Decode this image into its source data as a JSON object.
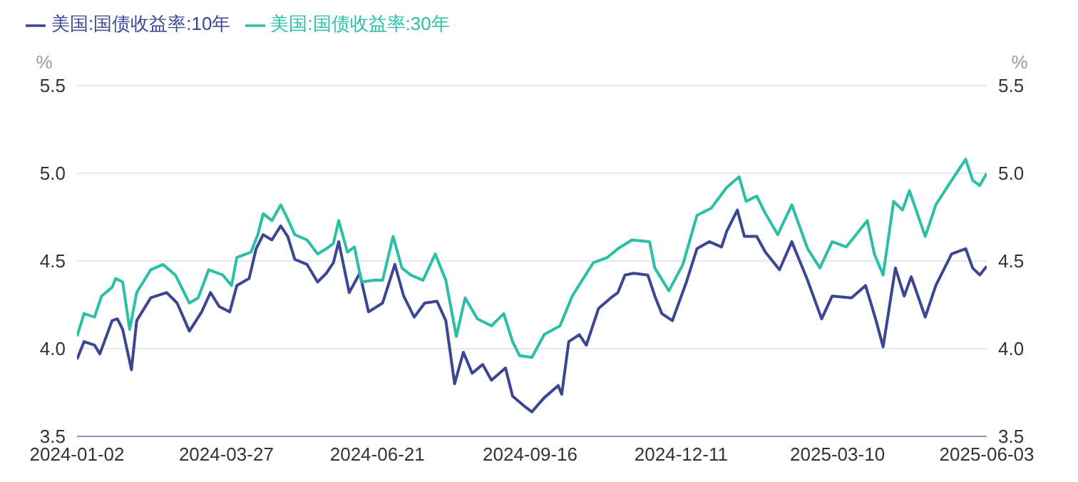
{
  "chart_data": {
    "type": "line",
    "ylabel": "%",
    "y2label": "%",
    "legend": "top left",
    "grid": "y",
    "marker": "none",
    "line_style": "solid",
    "xlim": [
      "2024-01-02",
      "2025-06-03"
    ],
    "xticks": [
      "2024-01-02",
      "2024-03-27",
      "2024-06-21",
      "2024-09-16",
      "2024-12-11",
      "2025-03-10",
      "2025-06-03"
    ],
    "ylim": [
      3.5,
      5.5
    ],
    "yticks": [
      3.5,
      {
        "value": 4,
        "label": "4.0"
      },
      4.5,
      {
        "value": 5,
        "label": "5.0"
      },
      5.5
    ],
    "y2lim": [
      3.5,
      5.5
    ],
    "y2ticks": [
      3.5,
      {
        "value": 4,
        "label": "4.0"
      },
      4.5,
      {
        "value": 5,
        "label": "5.0"
      },
      5.5
    ],
    "series": [
      {
        "name": "美国:国债收益率:10年",
        "color": "#3b4694",
        "x": [
          "2024-01-02",
          "2024-01-06",
          "2024-01-12",
          "2024-01-15",
          "2024-01-22",
          "2024-01-25",
          "2024-01-28",
          "2024-02-02",
          "2024-02-05",
          "2024-02-13",
          "2024-02-22",
          "2024-02-28",
          "2024-03-06",
          "2024-03-13",
          "2024-03-18",
          "2024-03-23",
          "2024-03-29",
          "2024-04-02",
          "2024-04-09",
          "2024-04-13",
          "2024-04-17",
          "2024-04-22",
          "2024-04-27",
          "2024-05-01",
          "2024-05-05",
          "2024-05-12",
          "2024-05-18",
          "2024-05-23",
          "2024-05-27",
          "2024-05-30",
          "2024-06-05",
          "2024-06-11",
          "2024-06-16",
          "2024-06-24",
          "2024-07-01",
          "2024-07-06",
          "2024-07-12",
          "2024-07-18",
          "2024-07-25",
          "2024-07-30",
          "2024-08-04",
          "2024-08-09",
          "2024-08-14",
          "2024-08-20",
          "2024-08-25",
          "2024-09-02",
          "2024-09-06",
          "2024-09-13",
          "2024-09-17",
          "2024-09-24",
          "2024-10-02",
          "2024-10-04",
          "2024-10-08",
          "2024-10-14",
          "2024-10-18",
          "2024-10-25",
          "2024-11-01",
          "2024-11-05",
          "2024-11-09",
          "2024-11-14",
          "2024-11-22",
          "2024-11-26",
          "2024-11-30",
          "2024-12-06",
          "2024-12-14",
          "2024-12-20",
          "2024-12-27",
          "2025-01-03",
          "2025-01-06",
          "2025-01-12",
          "2025-01-16",
          "2025-01-23",
          "2025-01-28",
          "2025-02-05",
          "2025-02-12",
          "2025-02-21",
          "2025-03-01",
          "2025-03-07",
          "2025-03-18",
          "2025-03-26",
          "2025-04-01",
          "2025-04-05",
          "2025-04-12",
          "2025-04-17",
          "2025-04-21",
          "2025-04-29",
          "2025-05-05",
          "2025-05-14",
          "2025-05-22",
          "2025-05-26",
          "2025-05-30",
          "2025-06-03"
        ],
        "values": [
          3.94,
          4.04,
          4.02,
          3.97,
          4.16,
          4.17,
          4.11,
          3.88,
          4.16,
          4.29,
          4.32,
          4.26,
          4.1,
          4.21,
          4.32,
          4.24,
          4.21,
          4.36,
          4.4,
          4.57,
          4.65,
          4.62,
          4.7,
          4.64,
          4.51,
          4.48,
          4.38,
          4.43,
          4.49,
          4.61,
          4.32,
          4.43,
          4.21,
          4.26,
          4.48,
          4.3,
          4.18,
          4.26,
          4.27,
          4.16,
          3.8,
          3.98,
          3.86,
          3.91,
          3.82,
          3.89,
          3.73,
          3.67,
          3.64,
          3.72,
          3.79,
          3.74,
          4.04,
          4.08,
          4.02,
          4.23,
          4.29,
          4.32,
          4.42,
          4.43,
          4.42,
          4.3,
          4.2,
          4.16,
          4.38,
          4.57,
          4.61,
          4.58,
          4.67,
          4.79,
          4.64,
          4.64,
          4.55,
          4.45,
          4.61,
          4.39,
          4.17,
          4.3,
          4.29,
          4.36,
          4.16,
          4.01,
          4.46,
          4.3,
          4.41,
          4.18,
          4.36,
          4.54,
          4.57,
          4.46,
          4.42,
          4.47
        ]
      },
      {
        "name": "美国:国债收益率:30年",
        "color": "#2bbfa8",
        "x": [
          "2024-01-02",
          "2024-01-06",
          "2024-01-12",
          "2024-01-16",
          "2024-01-22",
          "2024-01-24",
          "2024-01-28",
          "2024-02-01",
          "2024-02-05",
          "2024-02-13",
          "2024-02-20",
          "2024-02-27",
          "2024-03-06",
          "2024-03-11",
          "2024-03-17",
          "2024-03-25",
          "2024-03-30",
          "2024-04-02",
          "2024-04-10",
          "2024-04-14",
          "2024-04-17",
          "2024-04-22",
          "2024-04-27",
          "2024-04-30",
          "2024-05-05",
          "2024-05-12",
          "2024-05-18",
          "2024-05-23",
          "2024-05-27",
          "2024-05-30",
          "2024-06-04",
          "2024-06-08",
          "2024-06-12",
          "2024-06-19",
          "2024-06-24",
          "2024-06-30",
          "2024-07-05",
          "2024-07-10",
          "2024-07-17",
          "2024-07-24",
          "2024-07-30",
          "2024-08-05",
          "2024-08-10",
          "2024-08-17",
          "2024-08-25",
          "2024-09-01",
          "2024-09-06",
          "2024-09-10",
          "2024-09-17",
          "2024-09-24",
          "2024-10-03",
          "2024-10-10",
          "2024-10-15",
          "2024-10-22",
          "2024-10-30",
          "2024-11-05",
          "2024-11-13",
          "2024-11-23",
          "2024-11-26",
          "2024-12-04",
          "2024-12-12",
          "2024-12-20",
          "2024-12-28",
          "2025-01-06",
          "2025-01-13",
          "2025-01-17",
          "2025-01-23",
          "2025-01-28",
          "2025-02-04",
          "2025-02-12",
          "2025-02-21",
          "2025-02-28",
          "2025-03-07",
          "2025-03-15",
          "2025-03-27",
          "2025-03-31",
          "2025-04-05",
          "2025-04-11",
          "2025-04-16",
          "2025-04-20",
          "2025-04-29",
          "2025-05-05",
          "2025-05-14",
          "2025-05-22",
          "2025-05-26",
          "2025-05-30",
          "2025-06-03"
        ],
        "values": [
          4.07,
          4.2,
          4.18,
          4.3,
          4.35,
          4.4,
          4.38,
          4.11,
          4.32,
          4.45,
          4.48,
          4.42,
          4.26,
          4.29,
          4.45,
          4.42,
          4.36,
          4.52,
          4.55,
          4.65,
          4.77,
          4.73,
          4.82,
          4.76,
          4.65,
          4.62,
          4.54,
          4.57,
          4.6,
          4.73,
          4.55,
          4.58,
          4.38,
          4.39,
          4.39,
          4.64,
          4.46,
          4.42,
          4.39,
          4.54,
          4.39,
          4.07,
          4.29,
          4.17,
          4.13,
          4.2,
          4.04,
          3.96,
          3.95,
          4.08,
          4.13,
          4.3,
          4.38,
          4.49,
          4.52,
          4.57,
          4.62,
          4.61,
          4.46,
          4.33,
          4.48,
          4.76,
          4.8,
          4.92,
          4.98,
          4.84,
          4.87,
          4.77,
          4.65,
          4.82,
          4.57,
          4.46,
          4.61,
          4.58,
          4.73,
          4.54,
          4.42,
          4.84,
          4.79,
          4.9,
          4.64,
          4.82,
          4.96,
          5.08,
          4.96,
          4.93,
          5.0
        ]
      }
    ]
  }
}
